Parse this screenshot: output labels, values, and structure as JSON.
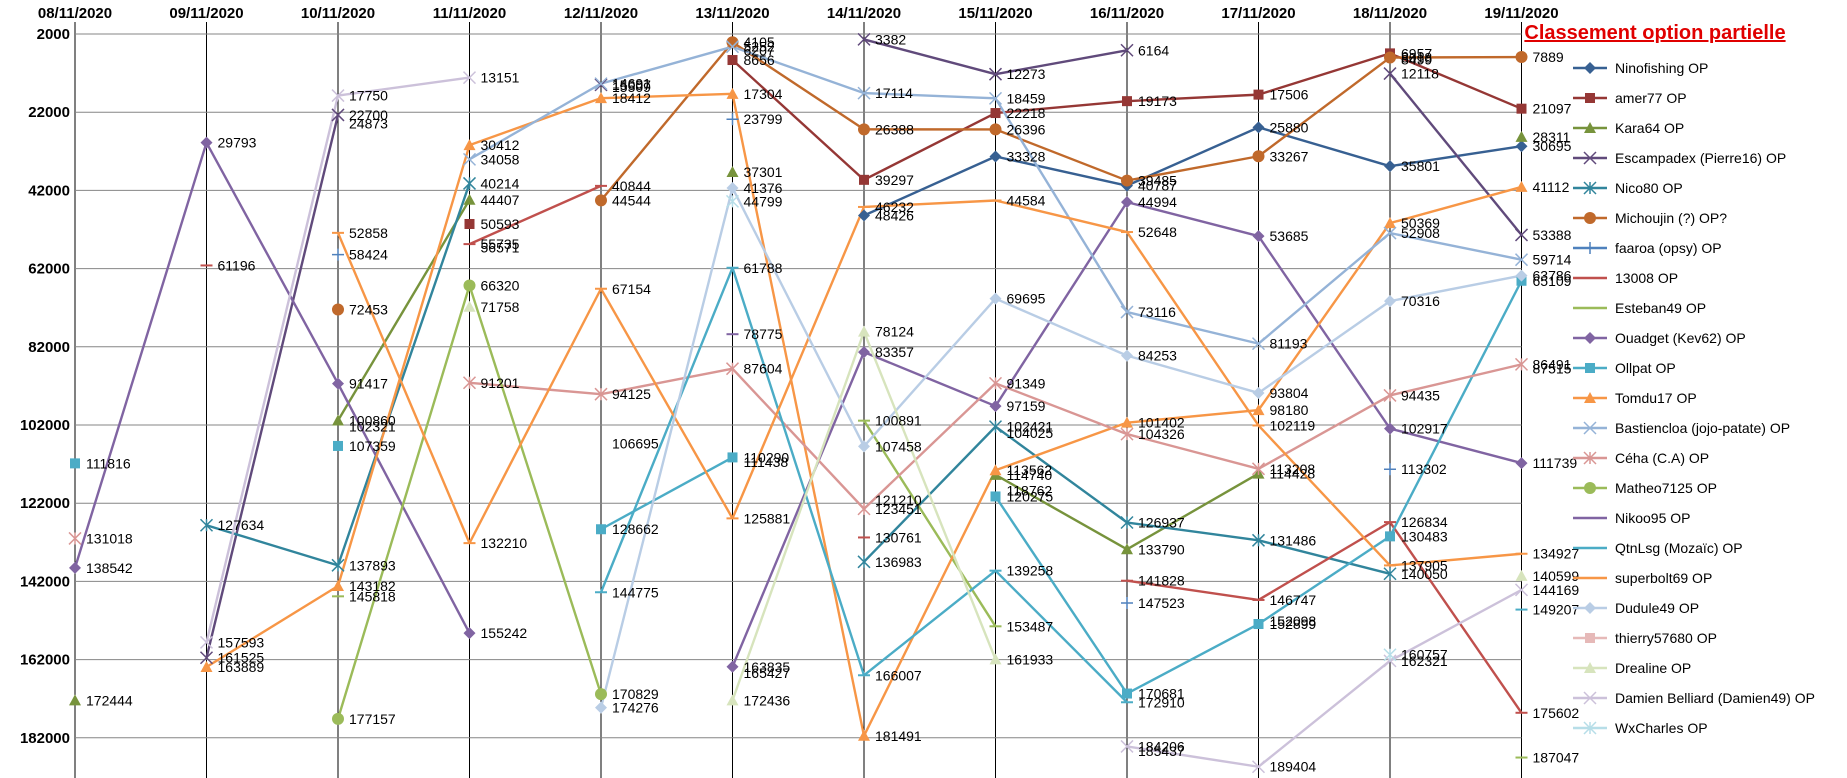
{
  "chart_data": {
    "type": "line",
    "title": "Classement option partielle",
    "xlabel": "",
    "ylabel": "",
    "categories": [
      "08/11/2020",
      "09/11/2020",
      "10/11/2020",
      "11/11/2020",
      "12/11/2020",
      "13/11/2020",
      "14/11/2020",
      "15/11/2020",
      "16/11/2020",
      "17/11/2020",
      "18/11/2020",
      "19/11/2020"
    ],
    "y_ticks": [
      "2000",
      "22000",
      "42000",
      "62000",
      "82000",
      "102000",
      "122000",
      "142000",
      "162000",
      "182000"
    ],
    "ylim": [
      2000,
      192000
    ],
    "y_reversed": true,
    "grid": true,
    "legend_position": "right",
    "series": [
      {
        "name": "Ninofishing OP",
        "color": "#376092",
        "marker": "diamond",
        "values": [
          null,
          null,
          null,
          null,
          null,
          null,
          48426,
          33328,
          40787,
          25880,
          35801,
          30695
        ]
      },
      {
        "name": "amer77 OP",
        "color": "#953735",
        "marker": "square",
        "values": [
          null,
          null,
          null,
          50593,
          null,
          8656,
          39297,
          22218,
          19173,
          17506,
          6957,
          21097
        ]
      },
      {
        "name": "Kara64  OP",
        "color": "#77933c",
        "marker": "triangle",
        "values": [
          172444,
          null,
          100860,
          44407,
          null,
          37301,
          null,
          114740,
          133790,
          114428,
          null,
          28311
        ]
      },
      {
        "name": "Escampadex (Pierre16) OP",
        "color": "#604a7b",
        "marker": "x",
        "values": [
          null,
          161525,
          22700,
          null,
          15007,
          null,
          3382,
          12273,
          6164,
          null,
          12118,
          53388
        ]
      },
      {
        "name": "Nico80 OP",
        "color": "#31859c",
        "marker": "star",
        "values": [
          null,
          127634,
          137893,
          40214,
          null,
          null,
          136983,
          102421,
          126937,
          131486,
          140050,
          null
        ]
      },
      {
        "name": "Michoujin (?) OP?",
        "color": "#c0692b",
        "marker": "circle",
        "values": [
          null,
          null,
          72453,
          null,
          44544,
          4105,
          26388,
          26396,
          39485,
          33267,
          8018,
          7889
        ]
      },
      {
        "name": "faaroa (opsy) OP",
        "color": "#4f81bd",
        "marker": "plus",
        "values": [
          null,
          null,
          58424,
          null,
          null,
          23799,
          null,
          null,
          147523,
          null,
          113302,
          null
        ]
      },
      {
        "name": "13008 OP",
        "color": "#c0504d",
        "marker": "dash",
        "values": [
          null,
          61196,
          null,
          55735,
          40844,
          null,
          130761,
          null,
          141828,
          146747,
          126834,
          175602
        ]
      },
      {
        "name": "Esteban49 OP",
        "color": "#9bbb59",
        "marker": "dash",
        "values": [
          null,
          null,
          145818,
          null,
          null,
          null,
          100891,
          153487,
          null,
          null,
          null,
          187047
        ]
      },
      {
        "name": "Ouadget (Kev62) OP",
        "color": "#8064a2",
        "marker": "diamond",
        "values": [
          138542,
          29793,
          91417,
          155242,
          null,
          163835,
          83357,
          97159,
          44994,
          53685,
          102917,
          111739
        ]
      },
      {
        "name": "Ollpat OP",
        "color": "#4bacc6",
        "marker": "square",
        "values": [
          111816,
          null,
          107359,
          null,
          128662,
          110290,
          null,
          120275,
          170681,
          152899,
          130483,
          65109
        ]
      },
      {
        "name": "Tomdu17 OP",
        "color": "#f79646",
        "marker": "triangle",
        "values": [
          null,
          163889,
          143182,
          30412,
          18412,
          17304,
          181491,
          113562,
          101402,
          98180,
          50369,
          41112
        ]
      },
      {
        "name": "Bastiencloa (jojo-patate) OP",
        "color": "#95b3d7",
        "marker": "x",
        "values": [
          null,
          null,
          null,
          34058,
          14691,
          5252,
          17114,
          18459,
          73116,
          81193,
          52908,
          59714
        ]
      },
      {
        "name": "Céha (C.A) OP",
        "color": "#d99694",
        "marker": "star",
        "values": [
          131018,
          null,
          null,
          91201,
          94125,
          87604,
          123451,
          91349,
          104326,
          113208,
          94435,
          86491
        ]
      },
      {
        "name": "Matheo7125 OP",
        "color": "#9bbb59",
        "marker": "circle",
        "values": [
          null,
          null,
          177157,
          66320,
          170829,
          null,
          null,
          null,
          null,
          null,
          null,
          null
        ]
      },
      {
        "name": "Nikoo95 OP",
        "color": "#8064a2",
        "marker": "dash",
        "values": [
          null,
          null,
          null,
          null,
          null,
          78775,
          null,
          null,
          null,
          null,
          null,
          null
        ]
      },
      {
        "name": "QtnLsg (Mozaïc) OP",
        "color": "#4bacc6",
        "marker": "dash",
        "values": [
          null,
          null,
          null,
          null,
          144775,
          61788,
          166007,
          139258,
          172910,
          null,
          null,
          149207
        ]
      },
      {
        "name": "superbolt69 OP",
        "color": "#f79646",
        "marker": "dash",
        "values": [
          null,
          null,
          52858,
          132210,
          67154,
          125881,
          46232,
          44584,
          52648,
          102119,
          137905,
          134927
        ]
      },
      {
        "name": "Dudule49 OP",
        "color": "#b9cde5",
        "marker": "diamond",
        "values": [
          null,
          null,
          null,
          null,
          174276,
          41376,
          107458,
          69695,
          84253,
          93804,
          70316,
          63786
        ]
      },
      {
        "name": "thierry57680 OP",
        "color": "#e6b9b8",
        "marker": "square",
        "values": [
          null,
          null,
          null,
          null,
          null,
          null,
          null,
          null,
          null,
          null,
          null,
          null
        ]
      },
      {
        "name": "Drealine OP",
        "color": "#d7e4bd",
        "marker": "triangle",
        "values": [
          null,
          null,
          null,
          71758,
          null,
          172436,
          78124,
          161933,
          null,
          null,
          null,
          140599
        ]
      },
      {
        "name": "Damien Belliard (Damien49) OP",
        "color": "#ccc1da",
        "marker": "x",
        "values": [
          null,
          157593,
          17750,
          13151,
          null,
          null,
          null,
          null,
          184206,
          189404,
          162321,
          144169
        ]
      },
      {
        "name": "WxCharles OP",
        "color": "#b7dee8",
        "marker": "star",
        "values": [
          null,
          null,
          null,
          null,
          null,
          44799,
          null,
          null,
          null,
          null,
          160757,
          null
        ]
      }
    ],
    "extra_labels": [
      {
        "x": "10/11/2020",
        "y": 24873,
        "text": "24873"
      },
      {
        "x": "10/11/2020",
        "y": 102321,
        "text": "102321"
      },
      {
        "x": "11/11/2020",
        "y": 56571,
        "text": "56571"
      },
      {
        "x": "12/11/2020",
        "y": 15509,
        "text": "15509"
      },
      {
        "x": "12/11/2020",
        "y": 106695,
        "text": "106695"
      },
      {
        "x": "13/11/2020",
        "y": 6207,
        "text": "6207"
      },
      {
        "x": "13/11/2020",
        "y": 111438,
        "text": "111438"
      },
      {
        "x": "13/11/2020",
        "y": 165427,
        "text": "165427"
      },
      {
        "x": "14/11/2020",
        "y": 121210,
        "text": "121210"
      },
      {
        "x": "15/11/2020",
        "y": 104025,
        "text": "104025"
      },
      {
        "x": "15/11/2020",
        "y": 118762,
        "text": "118762"
      },
      {
        "x": "16/11/2020",
        "y": 185437,
        "text": "185437"
      },
      {
        "x": "17/11/2020",
        "y": 152098,
        "text": "152098"
      },
      {
        "x": "18/11/2020",
        "y": 8499,
        "text": "8499"
      },
      {
        "x": "19/11/2020",
        "y": 87515,
        "text": "87515"
      }
    ]
  }
}
